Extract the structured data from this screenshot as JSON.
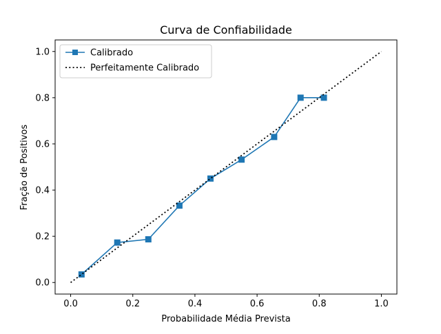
{
  "chart_data": {
    "type": "line",
    "title": "Curva de Confiabilidade",
    "xlabel": "Probabilidade Média Prevista",
    "ylabel": "Fração de Positivos",
    "xlim": [
      -0.05,
      1.05
    ],
    "ylim": [
      -0.05,
      1.05
    ],
    "xticks": [
      0.0,
      0.2,
      0.4,
      0.6,
      0.8,
      1.0
    ],
    "yticks": [
      0.0,
      0.2,
      0.4,
      0.6,
      0.8,
      1.0
    ],
    "xtick_labels": [
      "0.0",
      "0.2",
      "0.4",
      "0.6",
      "0.8",
      "1.0"
    ],
    "ytick_labels": [
      "0.0",
      "0.2",
      "0.4",
      "0.6",
      "0.8",
      "1.0"
    ],
    "grid": false,
    "legend_position": "upper-left",
    "series": [
      {
        "name": "Calibrado",
        "style": "solid-line-square-markers",
        "color": "#1f77b4",
        "x": [
          0.035,
          0.15,
          0.25,
          0.35,
          0.45,
          0.55,
          0.655,
          0.74,
          0.815
        ],
        "y": [
          0.035,
          0.173,
          0.187,
          0.333,
          0.45,
          0.532,
          0.63,
          0.8,
          0.8
        ]
      },
      {
        "name": "Perfeitamente Calibrado",
        "style": "dotted-line",
        "color": "#000000",
        "x": [
          0.0,
          1.0
        ],
        "y": [
          0.0,
          1.0
        ]
      }
    ]
  }
}
